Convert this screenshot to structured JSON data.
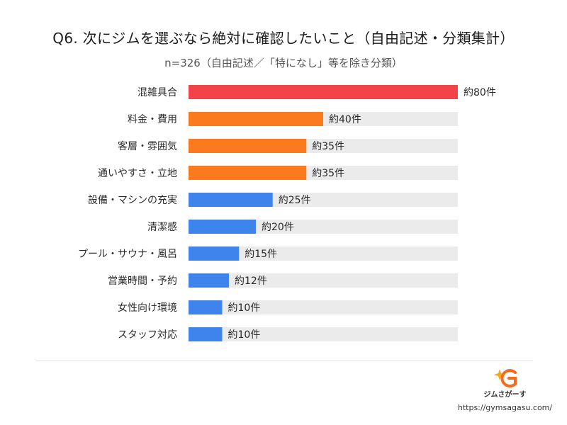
{
  "title": "Q6. 次にジムを選ぶなら絶対に確認したいこと（自由記述・分類集計）",
  "subtitle": "n=326（自由記述／「特になし」等を除き分類）",
  "chart_data": {
    "type": "bar",
    "orientation": "horizontal",
    "categories": [
      "混雑具合",
      "料金・費用",
      "客層・雰囲気",
      "通いやすさ・立地",
      "設備・マシンの充実",
      "清潔感",
      "プール・サウナ・風呂",
      "営業時間・予約",
      "女性向け環境",
      "スタッフ対応"
    ],
    "values": [
      80,
      40,
      35,
      35,
      25,
      20,
      15,
      12,
      10,
      10
    ],
    "value_labels": [
      "約80件",
      "約40件",
      "約35件",
      "約35件",
      "約25件",
      "約20件",
      "約15件",
      "約12件",
      "約10件",
      "約10件"
    ],
    "xlim": [
      0,
      80
    ],
    "bar_colors": [
      "#f44249",
      "#fb7a1e",
      "#fb7a1e",
      "#fb7a1e",
      "#3f83ec",
      "#3f83ec",
      "#3f83ec",
      "#3f83ec",
      "#3f83ec",
      "#3f83ec"
    ],
    "track_color": "#ebebeb",
    "grid": false,
    "legend": "none"
  },
  "brand": {
    "name": "ジムさがーす",
    "url": "https://gymsagasu.com/",
    "colors": [
      "#f5a623",
      "#f76b1c"
    ]
  }
}
